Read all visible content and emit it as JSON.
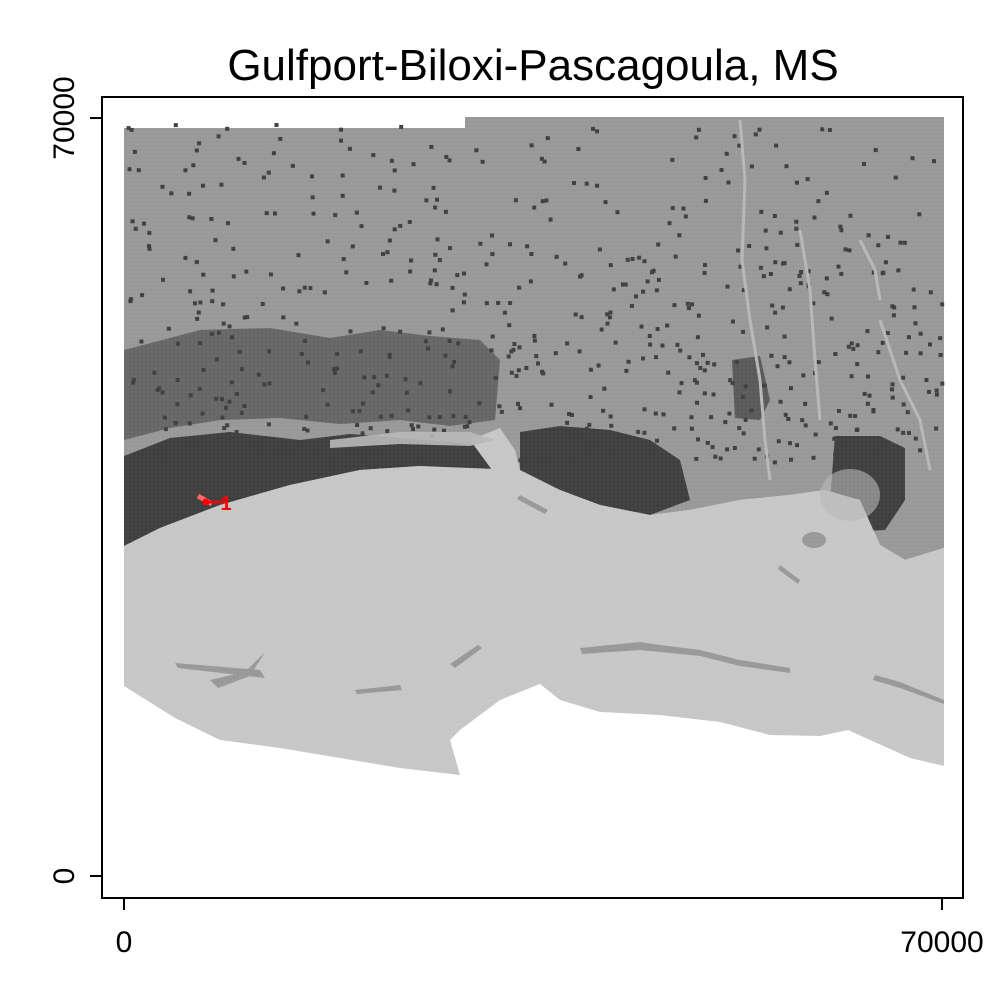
{
  "title": "Gulfport-Biloxi-Pascagoula, MS",
  "x_axis": {
    "ticks": [
      "0",
      "70000"
    ],
    "range": [
      0,
      70000
    ]
  },
  "y_axis": {
    "ticks": [
      "0",
      "70000"
    ],
    "range": [
      0,
      70000
    ]
  },
  "marker": {
    "label": "1",
    "color": "#ff0000"
  },
  "colors": {
    "water": "#c6c6c6",
    "land": "#979797",
    "developed": "#3d3d3d",
    "wetland": "#b7b7b7",
    "background": "#ffffff"
  }
}
